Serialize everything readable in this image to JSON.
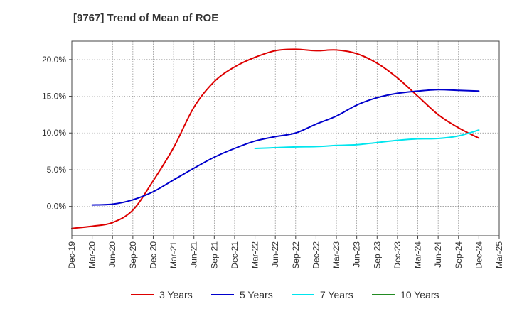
{
  "chart_data": {
    "type": "line",
    "title": "[9767]  Trend of Mean of ROE",
    "xlabel": "",
    "ylabel": "",
    "x_ticks": [
      "Dec-19",
      "Mar-20",
      "Jun-20",
      "Sep-20",
      "Dec-20",
      "Mar-21",
      "Jun-21",
      "Sep-21",
      "Dec-21",
      "Mar-22",
      "Jun-22",
      "Sep-22",
      "Dec-22",
      "Mar-23",
      "Jun-23",
      "Sep-23",
      "Dec-23",
      "Mar-24",
      "Jun-24",
      "Sep-24",
      "Dec-24",
      "Mar-25"
    ],
    "y_ticks": [
      "0.0%",
      "5.0%",
      "10.0%",
      "15.0%",
      "20.0%"
    ],
    "y_tick_values": [
      0,
      5,
      10,
      15,
      20
    ],
    "ylim": [
      -4.0,
      22.5
    ],
    "grid": true,
    "legend_position": "bottom",
    "series": [
      {
        "name": "3 Years",
        "color": "#dd0000",
        "x": [
          "Dec-19",
          "Mar-20",
          "Jun-20",
          "Sep-20",
          "Dec-20",
          "Mar-21",
          "Jun-21",
          "Sep-21",
          "Dec-21",
          "Mar-22",
          "Jun-22",
          "Sep-22",
          "Dec-22",
          "Mar-23",
          "Jun-23",
          "Sep-23",
          "Dec-23",
          "Mar-24",
          "Jun-24",
          "Sep-24",
          "Dec-24"
        ],
        "values": [
          -3.0,
          -2.7,
          -2.2,
          -0.5,
          3.5,
          8.0,
          13.5,
          17.0,
          19.0,
          20.3,
          21.2,
          21.4,
          21.2,
          21.3,
          20.8,
          19.5,
          17.5,
          15.0,
          12.5,
          10.7,
          9.3
        ]
      },
      {
        "name": "5 Years",
        "color": "#0000cc",
        "x": [
          "Mar-20",
          "Jun-20",
          "Sep-20",
          "Dec-20",
          "Mar-21",
          "Jun-21",
          "Sep-21",
          "Dec-21",
          "Mar-22",
          "Jun-22",
          "Sep-22",
          "Dec-22",
          "Mar-23",
          "Jun-23",
          "Sep-23",
          "Dec-23",
          "Mar-24",
          "Jun-24",
          "Sep-24",
          "Dec-24"
        ],
        "values": [
          0.2,
          0.3,
          0.9,
          2.0,
          3.6,
          5.2,
          6.7,
          7.9,
          8.9,
          9.5,
          10.0,
          11.2,
          12.3,
          13.8,
          14.8,
          15.4,
          15.7,
          15.9,
          15.8,
          15.7
        ]
      },
      {
        "name": "7 Years",
        "color": "#00e5ee",
        "x": [
          "Mar-22",
          "Jun-22",
          "Sep-22",
          "Dec-22",
          "Mar-23",
          "Jun-23",
          "Sep-23",
          "Dec-23",
          "Mar-24",
          "Jun-24",
          "Sep-24",
          "Dec-24"
        ],
        "values": [
          7.9,
          8.0,
          8.1,
          8.15,
          8.3,
          8.4,
          8.7,
          9.0,
          9.2,
          9.25,
          9.6,
          10.4
        ]
      },
      {
        "name": "10 Years",
        "color": "#228b22",
        "x": [],
        "values": []
      }
    ]
  }
}
